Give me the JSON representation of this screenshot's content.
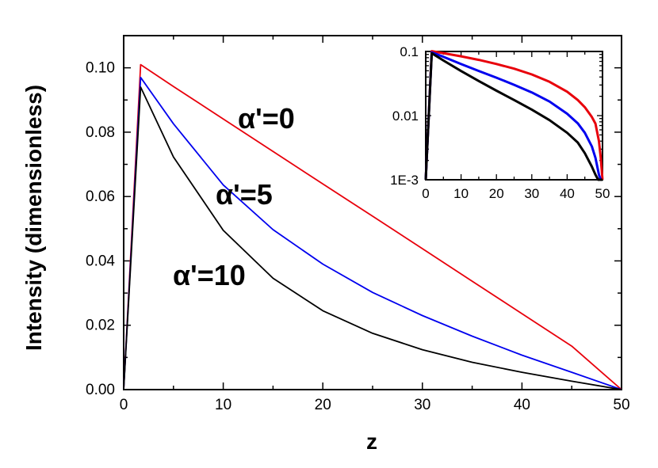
{
  "chart_data": [
    {
      "id": "main",
      "type": "line",
      "xlabel": "z",
      "ylabel": "Intensity (dimensionless)",
      "xlim": [
        0,
        50
      ],
      "ylim": [
        0,
        0.11
      ],
      "x_ticks": [
        0,
        10,
        20,
        30,
        40,
        50
      ],
      "x_tick_labels": [
        "0",
        "10",
        "20",
        "30",
        "40",
        "50"
      ],
      "y_ticks": [
        0,
        0.02,
        0.04,
        0.06,
        0.08,
        0.1
      ],
      "y_tick_labels": [
        "0.00",
        "0.02",
        "0.04",
        "0.06",
        "0.08",
        "0.10"
      ],
      "series": [
        {
          "name": "α'=0",
          "color": "#e8000b",
          "x": [
            0,
            1.7,
            5,
            10,
            15,
            20,
            25,
            30,
            35,
            40,
            45,
            50
          ],
          "y": [
            0,
            0.101,
            0.0942,
            0.0841,
            0.074,
            0.0639,
            0.0539,
            0.0438,
            0.0337,
            0.0236,
            0.0135,
            0
          ]
        },
        {
          "name": "α'=5",
          "color": "#0000ee",
          "x": [
            0,
            1.7,
            5,
            10,
            15,
            20,
            25,
            30,
            35,
            40,
            45,
            50
          ],
          "y": [
            0,
            0.097,
            0.0826,
            0.0636,
            0.0497,
            0.039,
            0.0302,
            0.023,
            0.0166,
            0.0107,
            0.0054,
            0
          ]
        },
        {
          "name": "α'=10",
          "color": "#000000",
          "x": [
            0,
            1.7,
            5,
            10,
            15,
            20,
            25,
            30,
            35,
            40,
            45,
            50
          ],
          "y": [
            0,
            0.094,
            0.0723,
            0.0495,
            0.0346,
            0.0245,
            0.0175,
            0.0124,
            0.0085,
            0.0054,
            0.0026,
            0
          ]
        }
      ],
      "annotations": [
        "α'=0",
        "α'=5",
        "α'=10"
      ]
    },
    {
      "id": "inset",
      "type": "line",
      "yscale": "log",
      "xlim": [
        0,
        50
      ],
      "ylim": [
        0.001,
        0.1
      ],
      "x_ticks": [
        0,
        10,
        20,
        30,
        40,
        50
      ],
      "x_tick_labels": [
        "0",
        "10",
        "20",
        "30",
        "40",
        "50"
      ],
      "y_ticks": [
        0.1,
        0.01,
        0.001
      ],
      "y_tick_labels": [
        "0.1",
        "0.01",
        "1E-3"
      ],
      "series": [
        {
          "color": "#e8000b",
          "x": [
            0,
            1.7,
            5,
            10,
            15,
            20,
            25,
            30,
            35,
            40,
            43,
            45,
            47,
            48,
            49,
            49.5,
            50
          ],
          "y": [
            0.001,
            0.101,
            0.0942,
            0.0841,
            0.074,
            0.0639,
            0.0539,
            0.0438,
            0.0337,
            0.0236,
            0.0175,
            0.0135,
            0.0095,
            0.0075,
            0.004,
            0.0022,
            0.001
          ]
        },
        {
          "color": "#0000ee",
          "x": [
            0,
            1.7,
            5,
            10,
            15,
            20,
            25,
            30,
            35,
            40,
            43,
            45,
            47,
            48,
            49,
            49.5,
            50
          ],
          "y": [
            0.001,
            0.097,
            0.0826,
            0.0636,
            0.0497,
            0.039,
            0.0302,
            0.023,
            0.0166,
            0.0107,
            0.0076,
            0.0054,
            0.0033,
            0.0022,
            0.0012,
            0.001,
            0.001
          ]
        },
        {
          "color": "#000000",
          "x": [
            0,
            1.7,
            5,
            10,
            15,
            20,
            25,
            30,
            35,
            40,
            43,
            45,
            47,
            48,
            48.8,
            49.2,
            50
          ],
          "y": [
            0.001,
            0.094,
            0.0723,
            0.0495,
            0.0346,
            0.0245,
            0.0175,
            0.0124,
            0.0085,
            0.0054,
            0.0038,
            0.0026,
            0.0016,
            0.0012,
            0.001,
            0.001,
            0.001
          ]
        }
      ]
    }
  ]
}
